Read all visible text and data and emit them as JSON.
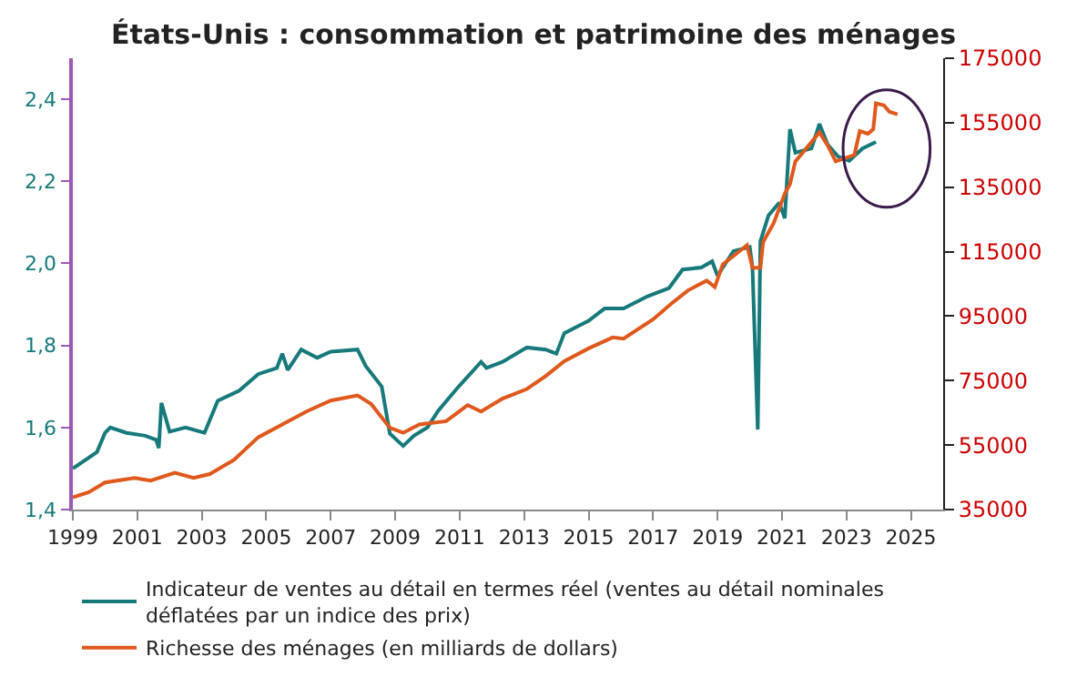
{
  "chart_data": {
    "type": "line",
    "title": "États-Unis : consommation et patrimoine des ménages",
    "series": [
      {
        "name": "Indicateur de ventes au détail en termes réel (ventes au détail nominales déflatées par un indice des prix)",
        "color": "#17797a",
        "x": [
          "1999-01",
          "1999-10",
          "2000-01",
          "2000-03",
          "2000-09",
          "2001-04",
          "2001-08",
          "2001-09",
          "2001-10",
          "2002-01",
          "2002-07",
          "2003-02",
          "2003-07",
          "2004-03",
          "2004-10",
          "2005-05",
          "2005-07",
          "2005-09",
          "2006-02",
          "2006-08",
          "2007-01",
          "2007-11",
          "2008-02",
          "2008-08",
          "2008-11",
          "2009-04",
          "2009-08",
          "2010-01",
          "2010-05",
          "2010-12",
          "2011-09",
          "2011-11",
          "2012-05",
          "2013-02",
          "2013-09",
          "2014-01",
          "2014-04",
          "2015-01",
          "2015-07",
          "2016-02",
          "2016-11",
          "2017-07",
          "2017-12",
          "2018-07",
          "2018-11",
          "2019-01",
          "2019-07",
          "2020-01",
          "2020-02",
          "2020-04",
          "2020-05",
          "2020-08",
          "2020-12",
          "2021-02",
          "2021-04",
          "2021-06",
          "2021-12",
          "2022-03",
          "2022-06",
          "2022-10",
          "2023-02",
          "2023-07",
          "2023-12"
        ],
        "values": [
          1.5,
          1.54,
          1.587,
          1.6,
          1.587,
          1.58,
          1.57,
          1.55,
          1.66,
          1.59,
          1.6,
          1.587,
          1.665,
          1.69,
          1.73,
          1.745,
          1.78,
          1.74,
          1.79,
          1.77,
          1.785,
          1.79,
          1.75,
          1.7,
          1.585,
          1.555,
          1.58,
          1.6,
          1.64,
          1.695,
          1.76,
          1.745,
          1.76,
          1.795,
          1.79,
          1.78,
          1.83,
          1.86,
          1.89,
          1.89,
          1.92,
          1.94,
          1.985,
          1.99,
          2.005,
          1.97,
          2.03,
          2.04,
          1.99,
          1.595,
          2.054,
          2.117,
          2.148,
          2.11,
          2.327,
          2.27,
          2.28,
          2.34,
          2.29,
          2.26,
          2.25,
          2.28,
          2.296
        ]
      },
      {
        "name": "Richesse des ménages (en milliards de dollars)",
        "color": "#e0581c",
        "axis": "y2",
        "x": [
          "1999-01",
          "1999-07",
          "2000-01",
          "2000-12",
          "2001-06",
          "2002-03",
          "2002-10",
          "2003-04",
          "2004-01",
          "2004-10",
          "2005-07",
          "2006-04",
          "2007-01",
          "2007-11",
          "2008-04",
          "2008-11",
          "2009-04",
          "2009-10",
          "2010-08",
          "2011-04",
          "2011-09",
          "2012-05",
          "2013-02",
          "2013-09",
          "2014-04",
          "2015-01",
          "2015-10",
          "2016-02",
          "2017-01",
          "2017-08",
          "2018-02",
          "2018-09",
          "2018-12",
          "2019-03",
          "2019-12",
          "2020-02",
          "2020-05",
          "2020-06",
          "2020-10",
          "2021-02",
          "2021-04",
          "2021-06",
          "2021-10",
          "2022-03",
          "2022-06",
          "2022-09",
          "2023-04",
          "2023-06",
          "2023-09",
          "2023-11",
          "2023-12",
          "2024-03",
          "2024-05",
          "2024-08"
        ],
        "values": [
          38800,
          40400,
          43400,
          44800,
          44000,
          46400,
          44800,
          46000,
          50400,
          57400,
          61400,
          65400,
          68800,
          70400,
          67800,
          60400,
          58800,
          61400,
          62400,
          67400,
          65400,
          69400,
          72400,
          76400,
          81000,
          85000,
          88400,
          88000,
          94000,
          99000,
          103000,
          106000,
          104000,
          111000,
          117000,
          110000,
          110000,
          118000,
          124000,
          133000,
          136000,
          143000,
          147000,
          152000,
          148000,
          143000,
          145000,
          152400,
          151600,
          153000,
          161000,
          160400,
          158400,
          157600
        ]
      }
    ],
    "xlim": [
      "1999",
      "2026"
    ],
    "xticks": [
      "1999",
      "2001",
      "2003",
      "2005",
      "2007",
      "2009",
      "2011",
      "2013",
      "2015",
      "2017",
      "2019",
      "2021",
      "2023",
      "2025"
    ],
    "ylim": [
      1.4,
      2.5
    ],
    "yticks": [
      {
        "value": 1.4,
        "label": "1,4"
      },
      {
        "value": 1.6,
        "label": "1,6"
      },
      {
        "value": 1.8,
        "label": "1,8"
      },
      {
        "value": 2.0,
        "label": "2,0"
      },
      {
        "value": 2.2,
        "label": "2,2"
      },
      {
        "value": 2.4,
        "label": "2,4"
      }
    ],
    "y2lim": [
      35000,
      175000
    ],
    "y2ticks": [
      35000,
      55000,
      75000,
      95000,
      115000,
      135000,
      155000,
      175000
    ],
    "legend": "bottom",
    "marker": "none",
    "line_style": "solid"
  }
}
